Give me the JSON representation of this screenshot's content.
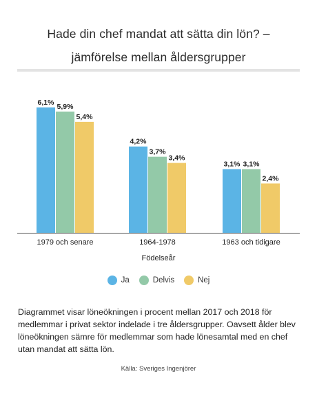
{
  "header": {
    "title_line1": "Hade din chef mandat att sätta din lön? –",
    "title_line2": "jämförelse mellan åldersgrupper"
  },
  "chart_data": {
    "type": "bar",
    "categories": [
      "1979 och senare",
      "1964-1978",
      "1963 och tidigare"
    ],
    "series": [
      {
        "name": "Ja",
        "values": [
          6.1,
          4.2,
          3.1
        ],
        "labels": [
          "6,1%",
          "4,2%",
          "3,1%"
        ],
        "color": "#5bb4e5"
      },
      {
        "name": "Delvis",
        "values": [
          5.9,
          3.7,
          3.1
        ],
        "labels": [
          "5,9%",
          "3,7%",
          "3,1%"
        ],
        "color": "#93c9a8"
      },
      {
        "name": "Nej",
        "values": [
          5.4,
          3.4,
          2.4
        ],
        "labels": [
          "5,4%",
          "3,4%",
          "2,4%"
        ],
        "color": "#f0ca68"
      }
    ],
    "xlabel": "Födelseår",
    "ylabel": "",
    "ylim": [
      0,
      6.1
    ],
    "grid": false,
    "legend": "bottom"
  },
  "footer": {
    "description": "Diagrammet visar löneökningen i procent mellan 2017 och 2018 för medlemmar i privat sektor indelade i tre åldersgrupper. Oavsett ålder blev löneökningen sämre för medlemmar som hade lönesamtal med en chef utan mandat att sätta lön.",
    "source": "Källa: Sveriges Ingenjörer"
  }
}
